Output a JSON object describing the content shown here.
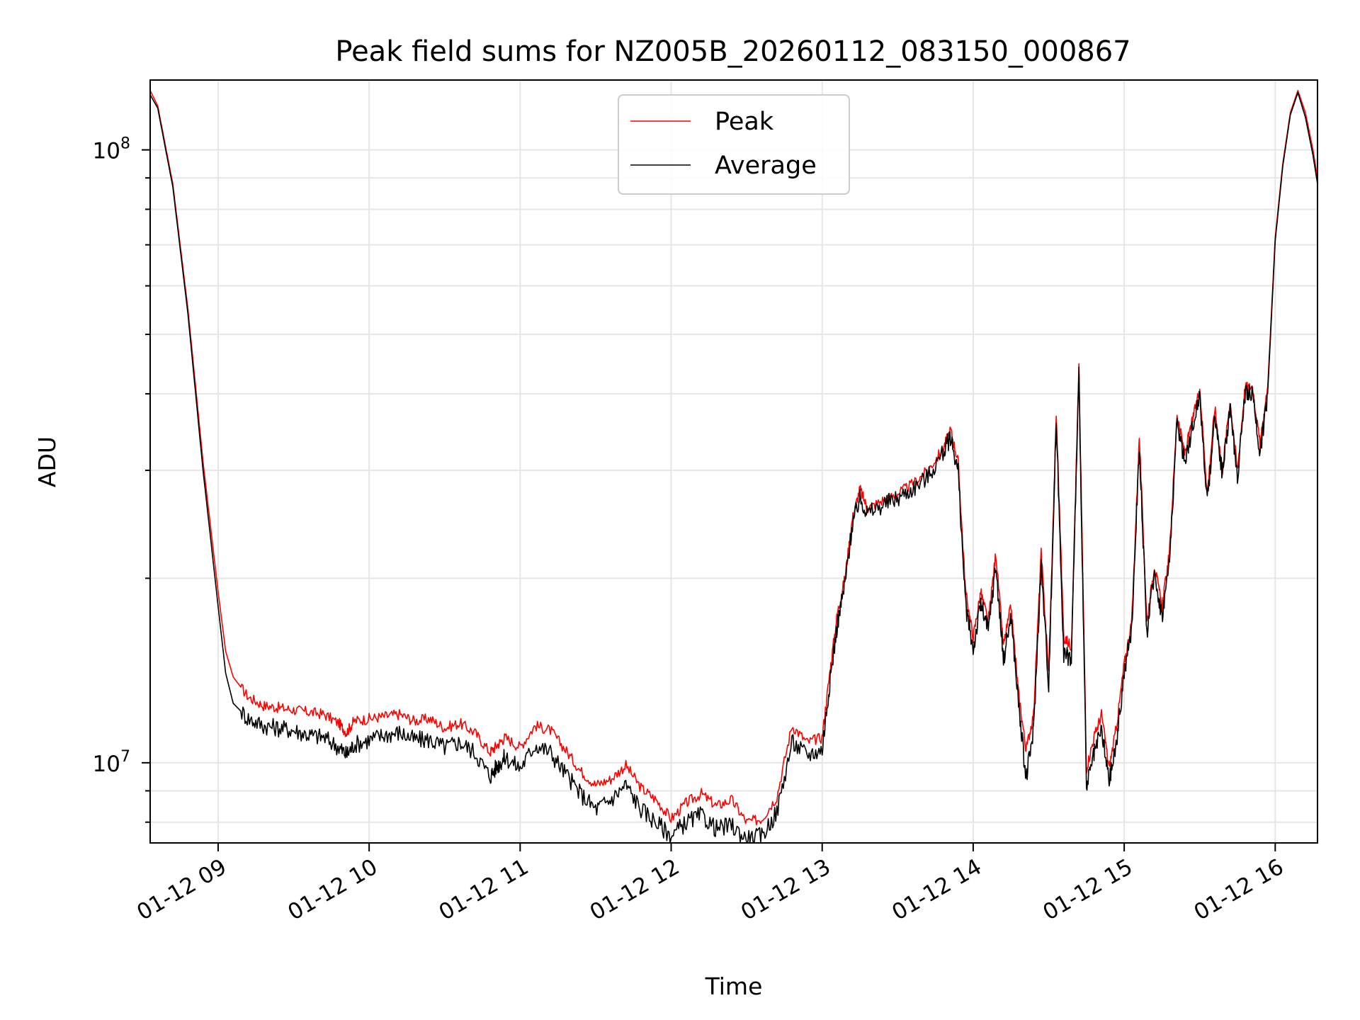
{
  "chart_data": {
    "type": "line",
    "title": "Peak field sums for NZ005B_20260112_083150_000867",
    "xlabel": "Time",
    "ylabel": "ADU",
    "yscale": "log",
    "xlim": [
      8.55,
      16.28
    ],
    "ylim": [
      7400000,
      130000000
    ],
    "grid": true,
    "x_ticks": [
      {
        "value": 9,
        "label": "01-12 09"
      },
      {
        "value": 10,
        "label": "01-12 10"
      },
      {
        "value": 11,
        "label": "01-12 11"
      },
      {
        "value": 12,
        "label": "01-12 12"
      },
      {
        "value": 13,
        "label": "01-12 13"
      },
      {
        "value": 14,
        "label": "01-12 14"
      },
      {
        "value": 15,
        "label": "01-12 15"
      },
      {
        "value": 16,
        "label": "01-12 16"
      }
    ],
    "y_ticks": [
      {
        "value": 10000000,
        "base": "10",
        "exp": "7"
      },
      {
        "value": 100000000,
        "base": "10",
        "exp": "8"
      }
    ],
    "legend": {
      "placement": "upper-center",
      "entries": [
        {
          "name": "Peak",
          "color": "#ff0000"
        },
        {
          "name": "Average",
          "color": "#000000"
        }
      ]
    },
    "series": [
      {
        "name": "Peak",
        "color": "#ff0000",
        "x": [
          8.55,
          8.6,
          8.7,
          8.8,
          8.9,
          9.0,
          9.05,
          9.1,
          9.2,
          9.3,
          9.4,
          9.5,
          9.6,
          9.7,
          9.8,
          9.85,
          9.9,
          10.0,
          10.1,
          10.2,
          10.3,
          10.4,
          10.5,
          10.6,
          10.7,
          10.8,
          10.85,
          10.9,
          11.0,
          11.1,
          11.2,
          11.3,
          11.4,
          11.5,
          11.6,
          11.7,
          11.8,
          11.9,
          12.0,
          12.1,
          12.2,
          12.3,
          12.4,
          12.5,
          12.6,
          12.7,
          12.8,
          12.9,
          13.0,
          13.05,
          13.1,
          13.15,
          13.2,
          13.25,
          13.3,
          13.4,
          13.5,
          13.6,
          13.7,
          13.8,
          13.85,
          13.9,
          13.95,
          14.0,
          14.05,
          14.1,
          14.15,
          14.2,
          14.25,
          14.3,
          14.35,
          14.4,
          14.45,
          14.5,
          14.55,
          14.6,
          14.65,
          14.7,
          14.75,
          14.8,
          14.85,
          14.9,
          14.95,
          15.0,
          15.05,
          15.1,
          15.15,
          15.2,
          15.25,
          15.3,
          15.35,
          15.4,
          15.45,
          15.5,
          15.55,
          15.6,
          15.65,
          15.7,
          15.75,
          15.8,
          15.85,
          15.9,
          15.95,
          16.0,
          16.05,
          16.1,
          16.15,
          16.2,
          16.25,
          16.28
        ],
        "y": [
          125000000,
          118000000,
          88000000,
          55000000,
          31000000,
          19000000,
          15200000,
          13800000,
          12800000,
          12400000,
          12300000,
          12200000,
          12100000,
          12000000,
          11600000,
          11200000,
          11700000,
          11800000,
          11900000,
          12000000,
          11700000,
          11800000,
          11400000,
          11600000,
          11200000,
          10400000,
          10700000,
          11000000,
          10600000,
          11500000,
          11300000,
          10500000,
          9700000,
          9200000,
          9400000,
          9900000,
          9100000,
          8700000,
          8100000,
          8600000,
          8900000,
          8500000,
          8700000,
          8000000,
          8100000,
          8800000,
          11500000,
          10800000,
          11000000,
          14000000,
          17500000,
          20000000,
          25000000,
          28000000,
          26000000,
          26800000,
          27500000,
          28500000,
          30000000,
          32500000,
          35000000,
          31000000,
          19000000,
          16000000,
          19000000,
          17000000,
          22000000,
          15500000,
          18000000,
          13000000,
          10500000,
          12000000,
          22000000,
          14000000,
          37000000,
          16000000,
          15500000,
          44000000,
          9800000,
          11000000,
          12000000,
          9800000,
          11500000,
          14500000,
          17000000,
          34000000,
          17000000,
          21000000,
          18000000,
          22000000,
          37000000,
          32000000,
          36000000,
          41000000,
          27500000,
          38000000,
          30000000,
          39000000,
          30000000,
          41000000,
          41000000,
          33000000,
          41000000,
          72000000,
          95000000,
          115000000,
          125000000,
          115000000,
          100000000,
          90000000
        ]
      },
      {
        "name": "Average",
        "color": "#000000",
        "x": [
          8.55,
          8.6,
          8.7,
          8.8,
          8.9,
          9.0,
          9.05,
          9.1,
          9.2,
          9.3,
          9.4,
          9.5,
          9.6,
          9.7,
          9.8,
          9.85,
          9.9,
          10.0,
          10.1,
          10.2,
          10.3,
          10.4,
          10.5,
          10.6,
          10.7,
          10.8,
          10.85,
          10.9,
          11.0,
          11.1,
          11.2,
          11.3,
          11.4,
          11.5,
          11.6,
          11.7,
          11.8,
          11.9,
          12.0,
          12.1,
          12.2,
          12.3,
          12.4,
          12.5,
          12.6,
          12.7,
          12.8,
          12.9,
          13.0,
          13.05,
          13.1,
          13.15,
          13.2,
          13.25,
          13.3,
          13.4,
          13.5,
          13.6,
          13.7,
          13.8,
          13.85,
          13.9,
          13.95,
          14.0,
          14.05,
          14.1,
          14.15,
          14.2,
          14.25,
          14.3,
          14.35,
          14.4,
          14.45,
          14.5,
          14.55,
          14.6,
          14.65,
          14.7,
          14.75,
          14.8,
          14.85,
          14.9,
          14.95,
          15.0,
          15.05,
          15.1,
          15.15,
          15.2,
          15.25,
          15.3,
          15.35,
          15.4,
          15.45,
          15.5,
          15.55,
          15.6,
          15.65,
          15.7,
          15.75,
          15.8,
          15.85,
          15.9,
          15.95,
          16.0,
          16.05,
          16.1,
          16.15,
          16.2,
          16.25,
          16.28
        ],
        "y": [
          123000000,
          117000000,
          87000000,
          54000000,
          30000000,
          18000000,
          14000000,
          12500000,
          11800000,
          11500000,
          11400000,
          11300000,
          11100000,
          11000000,
          10600000,
          10300000,
          10700000,
          10900000,
          11100000,
          11200000,
          10900000,
          10900000,
          10600000,
          10800000,
          10400000,
          9500000,
          9900000,
          10200000,
          9800000,
          10700000,
          10400000,
          9600000,
          8900000,
          8400000,
          8700000,
          9200000,
          8400000,
          8000000,
          7600000,
          8000000,
          8200000,
          7800000,
          7900000,
          7500000,
          7600000,
          8300000,
          10800000,
          10300000,
          10500000,
          13500000,
          16800000,
          19500000,
          24500000,
          27000000,
          25500000,
          26300000,
          27000000,
          28000000,
          29300000,
          32000000,
          34000000,
          30000000,
          18000000,
          15300000,
          18200000,
          16400000,
          21000000,
          14700000,
          17400000,
          12500000,
          9400000,
          11300000,
          21000000,
          13400000,
          36000000,
          15000000,
          14800000,
          43000000,
          9100000,
          10300000,
          11300000,
          9300000,
          10800000,
          14000000,
          16500000,
          33000000,
          16300000,
          20500000,
          17300000,
          21300000,
          36000000,
          31000000,
          35000000,
          40000000,
          26500000,
          37000000,
          29500000,
          38000000,
          29300000,
          40000000,
          40000000,
          32000000,
          40000000,
          71000000,
          94000000,
          114000000,
          124000000,
          113000000,
          98000000,
          88000000
        ]
      }
    ]
  }
}
